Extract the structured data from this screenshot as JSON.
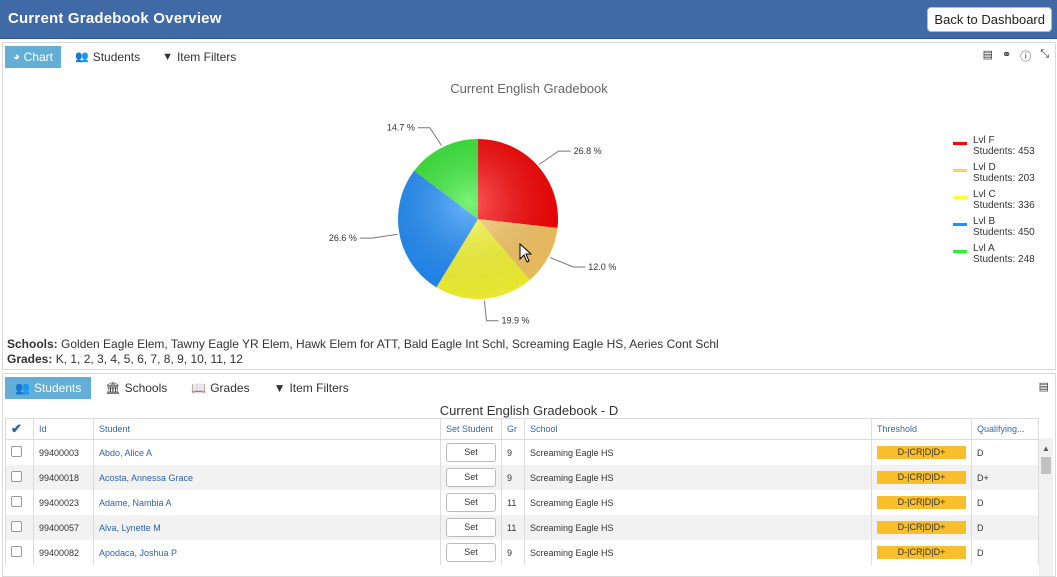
{
  "header": {
    "title": "Current Gradebook Overview",
    "back_label": "Back to Dashboard"
  },
  "chart_panel": {
    "tabs": [
      {
        "label": "Chart",
        "icon": "pie-chart-icon"
      },
      {
        "label": "Students",
        "icon": "users-icon"
      },
      {
        "label": "Item Filters",
        "icon": "filter-icon"
      }
    ],
    "schools_label": "Schools:",
    "schools_value": "Golden Eagle Elem, Tawny Eagle YR Elem, Hawk Elem for ATT, Bald Eagle Int Schl, Screaming Eagle HS, Aeries Cont Schl",
    "grades_label": "Grades:",
    "grades_value": "K, 1, 2, 3, 4, 5, 6, 7, 8, 9, 10, 11, 12"
  },
  "chart_data": {
    "type": "pie",
    "title": "Current English Gradebook",
    "series": [
      {
        "name": "Lvl F",
        "students_label": "Students: 453",
        "percent_label": "26.8 %",
        "value": 26.8,
        "color": "#ff0000"
      },
      {
        "name": "Lvl D",
        "students_label": "Students: 203",
        "percent_label": "12.0 %",
        "value": 12.0,
        "color": "#ffcc66"
      },
      {
        "name": "Lvl C",
        "students_label": "Students: 336",
        "percent_label": "19.9 %",
        "value": 19.9,
        "color": "#ffff33"
      },
      {
        "name": "Lvl B",
        "students_label": "Students: 450",
        "percent_label": "26.6 %",
        "value": 26.6,
        "color": "#1e90ff"
      },
      {
        "name": "Lvl A",
        "students_label": "Students: 248",
        "percent_label": "14.7 %",
        "value": 14.7,
        "color": "#33ee33"
      }
    ],
    "legend_position": "right"
  },
  "students_panel": {
    "tabs": [
      {
        "label": "Students",
        "icon": "users-icon"
      },
      {
        "label": "Schools",
        "icon": "bank-icon"
      },
      {
        "label": "Grades",
        "icon": "book-icon"
      },
      {
        "label": "Item Filters",
        "icon": "filter-icon"
      }
    ],
    "grid_title": "Current English Gradebook - D",
    "columns": [
      "Id",
      "Student",
      "Set Student",
      "Gr",
      "School",
      "Threshold",
      "Qualifying..."
    ],
    "rows": [
      {
        "id": "99400003",
        "student": "Abdo, Alice A",
        "set": "Set",
        "gr": "9",
        "school": "Screaming Eagle HS",
        "threshold": "D-|CR|D|D+",
        "qualifying": "D"
      },
      {
        "id": "99400018",
        "student": "Acosta, Annessa Grace",
        "set": "Set",
        "gr": "9",
        "school": "Screaming Eagle HS",
        "threshold": "D-|CR|D|D+",
        "qualifying": "D+"
      },
      {
        "id": "99400023",
        "student": "Adame, Nambia A",
        "set": "Set",
        "gr": "11",
        "school": "Screaming Eagle HS",
        "threshold": "D-|CR|D|D+",
        "qualifying": "D"
      },
      {
        "id": "99400057",
        "student": "Alva, Lynette M",
        "set": "Set",
        "gr": "11",
        "school": "Screaming Eagle HS",
        "threshold": "D-|CR|D|D+",
        "qualifying": "D"
      },
      {
        "id": "99400082",
        "student": "Apodaca, Joshua P",
        "set": "Set",
        "gr": "9",
        "school": "Screaming Eagle HS",
        "threshold": "D-|CR|D|D+",
        "qualifying": "D"
      }
    ]
  }
}
